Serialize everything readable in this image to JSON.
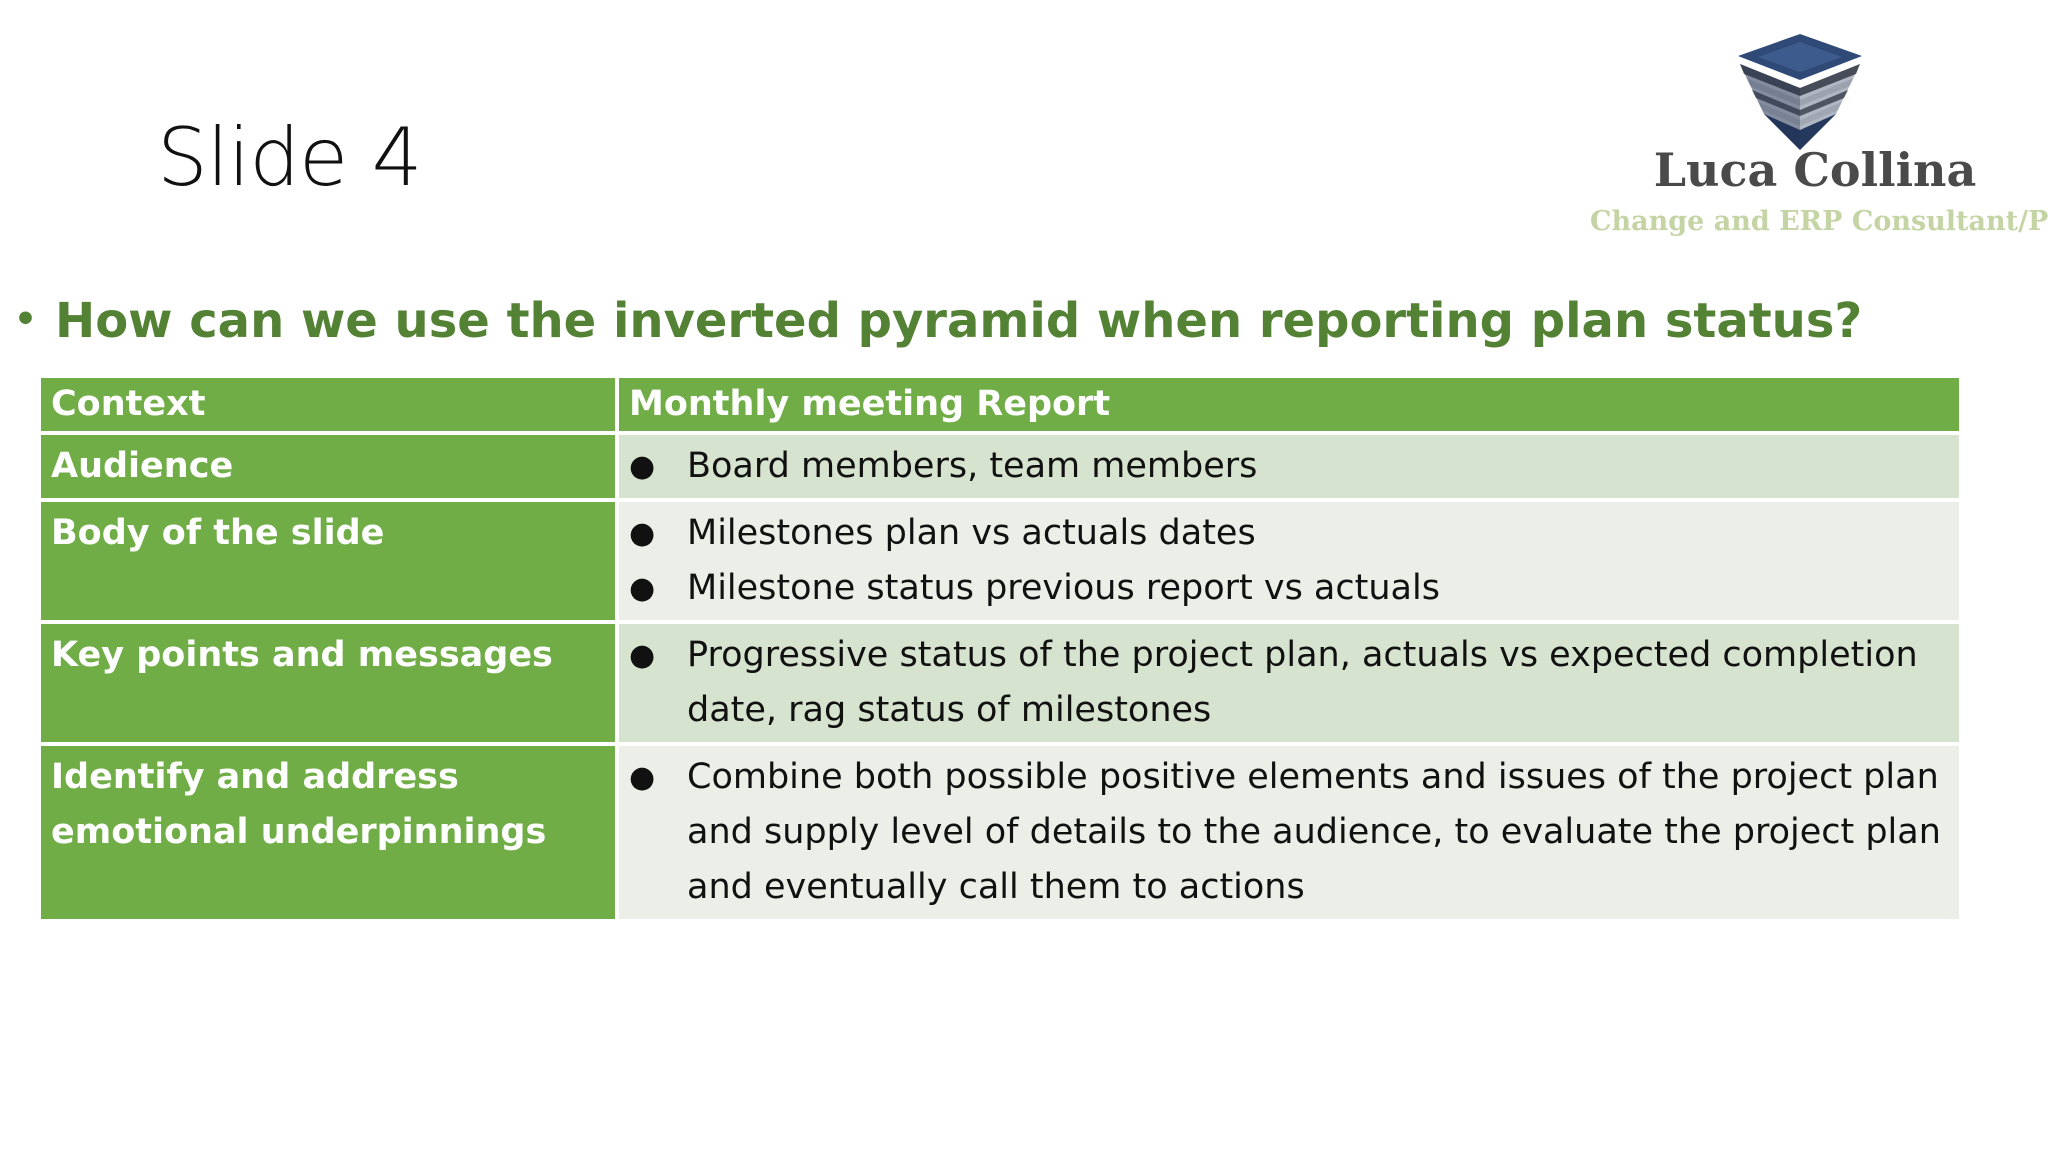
{
  "slide": {
    "title": "Slide 4",
    "question": "How can we use the inverted pyramid when reporting plan status?"
  },
  "logo": {
    "name": "Luca Collina",
    "tagline": "Change and ERP Consultant/PM",
    "icon": "stacked-pyramid-logo-icon"
  },
  "table": {
    "header": {
      "label": "Context",
      "value": "Monthly meeting Report"
    },
    "rows": [
      {
        "label": "Audience",
        "items": [
          "Board members, team members"
        ]
      },
      {
        "label": "Body of the slide",
        "items": [
          "Milestones plan vs actuals dates",
          "Milestone status previous report vs actuals"
        ]
      },
      {
        "label": "Key points and messages",
        "items": [
          "Progressive status of the project plan, actuals vs expected completion date, rag status of milestones"
        ]
      },
      {
        "label": "Identify and address emotional underpinnings",
        "items": [
          "Combine both possible positive elements and issues of the project plan and supply level of details to the audience, to evaluate the project plan and eventually call them to actions"
        ]
      }
    ]
  },
  "colors": {
    "accent_green": "#70ad47",
    "question_green": "#548235",
    "band_dark": "#d6e3cf",
    "band_light": "#ebefe8"
  }
}
